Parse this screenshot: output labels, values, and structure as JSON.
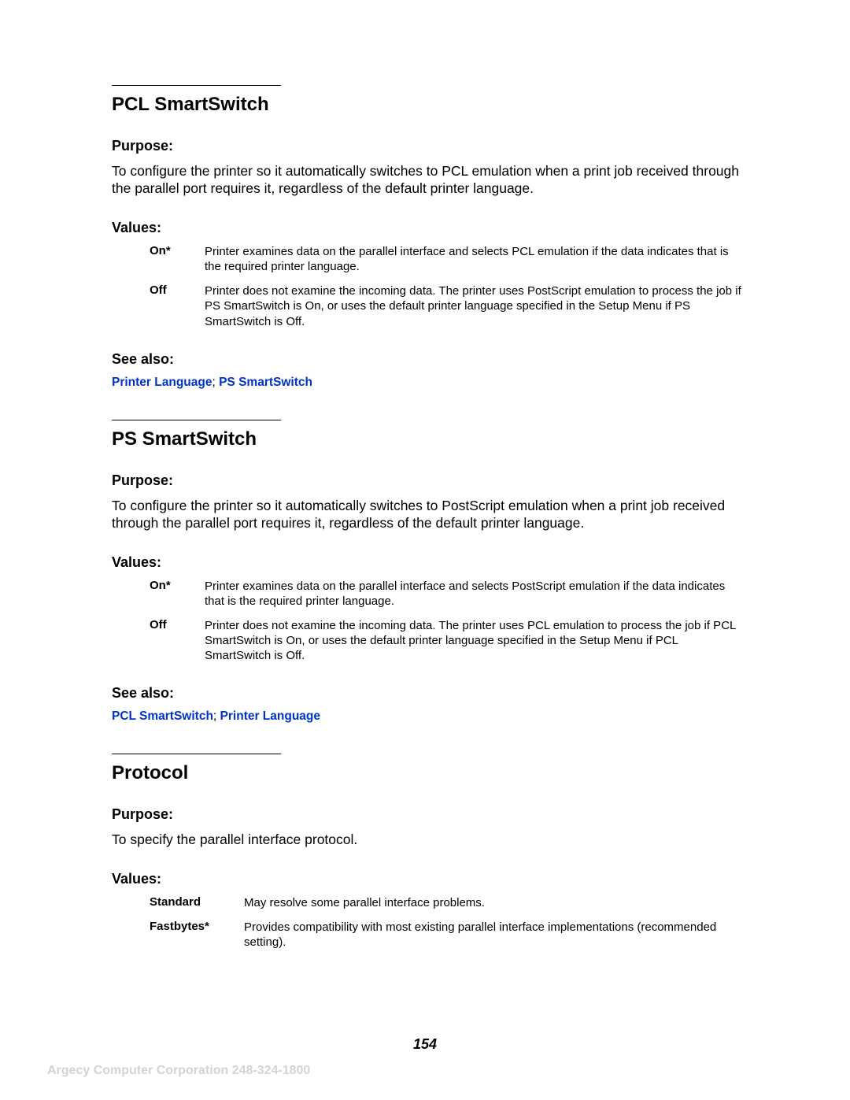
{
  "colors": {
    "link": "#0033cc",
    "footer": "#d3d3d3",
    "text": "#000000",
    "background": "#ffffff"
  },
  "page_number": "154",
  "footer": "Argecy Computer Corporation 248-324-1800",
  "sections": {
    "s1": {
      "title": "PCL SmartSwitch",
      "purpose_label": "Purpose:",
      "purpose_text": "To configure the printer so it automatically switches to PCL emulation when a print job received through the parallel port requires it, regardless of the default printer language.",
      "values_label": "Values:",
      "values": {
        "r0": {
          "label": "On*",
          "desc": "Printer examines data on the parallel interface and selects PCL emulation if the data indicates that is the required printer language."
        },
        "r1": {
          "label": "Off",
          "desc": "Printer does not examine the incoming data. The printer uses PostScript emulation to process the job if PS SmartSwitch is On, or uses the default printer language specified in the Setup Menu if PS SmartSwitch is Off."
        }
      },
      "see_also_label": "See also:",
      "link1": "Printer Language",
      "link_sep": "; ",
      "link2": "PS SmartSwitch"
    },
    "s2": {
      "title": "PS SmartSwitch",
      "purpose_label": "Purpose:",
      "purpose_text": "To configure the printer so it automatically switches to PostScript emulation when a print job received through the parallel port requires it, regardless of the default printer language.",
      "values_label": "Values:",
      "values": {
        "r0": {
          "label": "On*",
          "desc": "Printer examines data on the parallel interface and selects PostScript emulation if the data indicates that is the required printer language."
        },
        "r1": {
          "label": "Off",
          "desc": "Printer does not examine the incoming data. The printer uses PCL emulation to process the job if PCL SmartSwitch is On, or uses the default printer language specified in the Setup Menu if PCL SmartSwitch is Off."
        }
      },
      "see_also_label": "See also:",
      "link1": "PCL SmartSwitch",
      "link_sep": "; ",
      "link2": "Printer Language"
    },
    "s3": {
      "title": "Protocol",
      "purpose_label": "Purpose:",
      "purpose_text": "To specify the parallel interface protocol.",
      "values_label": "Values:",
      "values": {
        "r0": {
          "label": "Standard",
          "desc": "May resolve some parallel interface problems."
        },
        "r1": {
          "label": "Fastbytes*",
          "desc": "Provides compatibility with most existing parallel interface implementations (recommended setting)."
        }
      }
    }
  }
}
